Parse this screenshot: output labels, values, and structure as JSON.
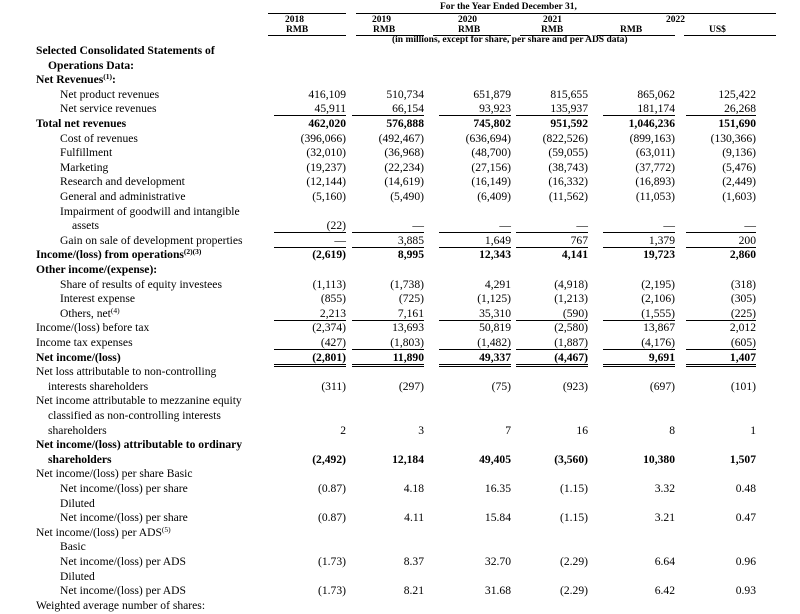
{
  "header": {
    "period_caption": "For the Year Ended December 31,",
    "units_caption": "(in millions, except for share, per share and per ADS data)",
    "years": [
      "2018",
      "2019",
      "2020",
      "2021",
      "2022",
      ""
    ],
    "currencies": [
      "RMB",
      "RMB",
      "RMB",
      "RMB",
      "RMB",
      "US$"
    ]
  },
  "rows": [
    {
      "label": "Selected Consolidated Statements of",
      "bold": true,
      "indent": 0
    },
    {
      "label": "Operations Data:",
      "bold": true,
      "indent": 1
    },
    {
      "label": "Net Revenues",
      "note": "(1)",
      "suffix": ":",
      "bold": true,
      "indent": 0
    },
    {
      "label": "Net product revenues",
      "indent": 2,
      "values": [
        "416,109",
        "510,734",
        "651,879",
        "815,655",
        "865,062",
        "125,422"
      ]
    },
    {
      "label": "Net service revenues",
      "indent": 2,
      "values": [
        "45,911",
        "66,154",
        "93,923",
        "135,937",
        "181,174",
        "26,268"
      ],
      "underline": true
    },
    {
      "label": "Total net revenues",
      "bold": true,
      "indent": 0,
      "values": [
        "462,020",
        "576,888",
        "745,802",
        "951,592",
        "1,046,236",
        "151,690"
      ]
    },
    {
      "label": "Cost of revenues",
      "indent": 2,
      "values": [
        "(396,066)",
        "(492,467)",
        "(636,694)",
        "(822,526)",
        "(899,163)",
        "(130,366)"
      ]
    },
    {
      "label": "Fulfillment",
      "indent": 2,
      "values": [
        "(32,010)",
        "(36,968)",
        "(48,700)",
        "(59,055)",
        "(63,011)",
        "(9,136)"
      ]
    },
    {
      "label": "Marketing",
      "indent": 2,
      "values": [
        "(19,237)",
        "(22,234)",
        "(27,156)",
        "(38,743)",
        "(37,772)",
        "(5,476)"
      ]
    },
    {
      "label": "Research and development",
      "indent": 2,
      "values": [
        "(12,144)",
        "(14,619)",
        "(16,149)",
        "(16,332)",
        "(16,893)",
        "(2,449)"
      ]
    },
    {
      "label": "General and administrative",
      "indent": 2,
      "values": [
        "(5,160)",
        "(5,490)",
        "(6,409)",
        "(11,562)",
        "(11,053)",
        "(1,603)"
      ]
    },
    {
      "label": "Impairment of goodwill and intangible",
      "indent": 2
    },
    {
      "label": "assets",
      "indent": 3,
      "values": [
        "(22)",
        "—",
        "—",
        "—",
        "—",
        "—"
      ],
      "underline": true
    },
    {
      "label": "Gain on sale of development properties",
      "indent": 2,
      "values": [
        "—",
        "3,885",
        "1,649",
        "767",
        "1,379",
        "200"
      ],
      "underline": true
    },
    {
      "label": "Income/(loss) from operations",
      "note": "(2)(3)",
      "bold": true,
      "indent": 0,
      "values": [
        "(2,619)",
        "8,995",
        "12,343",
        "4,141",
        "19,723",
        "2,860"
      ]
    },
    {
      "label": "Other income/(expense):",
      "bold": true,
      "indent": 0
    },
    {
      "label": "Share of results of equity investees",
      "indent": 2,
      "values": [
        "(1,113)",
        "(1,738)",
        "4,291",
        "(4,918)",
        "(2,195)",
        "(318)"
      ]
    },
    {
      "label": "Interest expense",
      "indent": 2,
      "values": [
        "(855)",
        "(725)",
        "(1,125)",
        "(1,213)",
        "(2,106)",
        "(305)"
      ]
    },
    {
      "label": "Others, net",
      "note": "(4)",
      "indent": 2,
      "values": [
        "2,213",
        "7,161",
        "35,310",
        "(590)",
        "(1,555)",
        "(225)"
      ],
      "underline": true
    },
    {
      "label": "Income/(loss) before tax",
      "indent": 0,
      "values": [
        "(2,374)",
        "13,693",
        "50,819",
        "(2,580)",
        "13,867",
        "2,012"
      ]
    },
    {
      "label": "Income tax expenses",
      "indent": 0,
      "values": [
        "(427)",
        "(1,803)",
        "(1,482)",
        "(1,887)",
        "(4,176)",
        "(605)"
      ],
      "underline": true
    },
    {
      "label": "Net income/(loss)",
      "bold": true,
      "indent": 0,
      "values": [
        "(2,801)",
        "11,890",
        "49,337",
        "(4,467)",
        "9,691",
        "1,407"
      ],
      "double": true
    },
    {
      "label": "Net loss attributable to non-controlling",
      "indent": 0
    },
    {
      "label": "interests shareholders",
      "indent": 1,
      "values": [
        "(311)",
        "(297)",
        "(75)",
        "(923)",
        "(697)",
        "(101)"
      ]
    },
    {
      "label": "Net income attributable to mezzanine equity",
      "indent": 0
    },
    {
      "label": "classified as non-controlling interests",
      "indent": 1
    },
    {
      "label": "shareholders",
      "indent": 1,
      "values": [
        "2",
        "3",
        "7",
        "16",
        "8",
        "1"
      ]
    },
    {
      "label": "Net income/(loss) attributable to ordinary",
      "bold": true,
      "indent": 0
    },
    {
      "label": "shareholders",
      "bold": true,
      "indent": 1,
      "values": [
        "(2,492)",
        "12,184",
        "49,405",
        "(3,560)",
        "10,380",
        "1,507"
      ]
    },
    {
      "label": "Net income/(loss) per share Basic",
      "indent": 0
    },
    {
      "label": "Net income/(loss) per share",
      "indent": 2,
      "values": [
        "(0.87)",
        "4.18",
        "16.35",
        "(1.15)",
        "3.32",
        "0.48"
      ]
    },
    {
      "label": "Diluted",
      "indent": 2
    },
    {
      "label": "Net income/(loss) per share",
      "indent": 2,
      "values": [
        "(0.87)",
        "4.11",
        "15.84",
        "(1.15)",
        "3.21",
        "0.47"
      ]
    },
    {
      "label": "Net income/(loss) per ADS",
      "note": "(5)",
      "indent": 0
    },
    {
      "label": "Basic",
      "indent": 2
    },
    {
      "label": "Net income/(loss) per ADS",
      "indent": 2,
      "values": [
        "(1.73)",
        "8.37",
        "32.70",
        "(2.29)",
        "6.64",
        "0.96"
      ]
    },
    {
      "label": "Diluted",
      "indent": 2
    },
    {
      "label": "Net income/(loss) per ADS",
      "indent": 2,
      "values": [
        "(1.73)",
        "8.21",
        "31.68",
        "(2.29)",
        "6.42",
        "0.93"
      ]
    },
    {
      "label": "Weighted average number of shares:",
      "indent": 0
    }
  ]
}
